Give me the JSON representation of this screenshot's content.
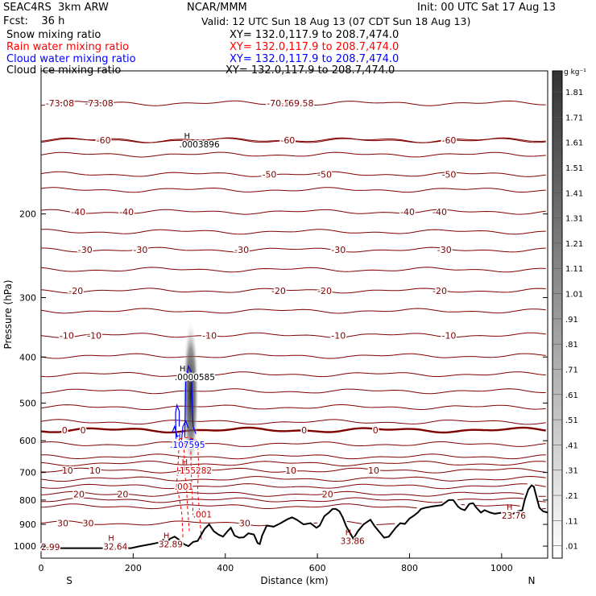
{
  "header": {
    "model": "SEAC4RS  3km ARW",
    "org": "NCAR/MMM",
    "init": "Init: 00 UTC Sat 17 Aug 13",
    "fcst": "Fcst:    36 h",
    "valid": "Valid: 12 UTC Sun 18 Aug 13 (07 CDT Sun 18 Aug 13)"
  },
  "fields": [
    {
      "name": "Snow mixing ratio",
      "xy": "XY= 132.0,117.9 to 208.7,474.0",
      "color": "#000000"
    },
    {
      "name": "Rain water mixing ratio",
      "xy": "XY= 132.0,117.9 to 208.7,474.0",
      "color": "#ff0000"
    },
    {
      "name": "Cloud water mixing ratio",
      "xy": "XY= 132.0,117.9 to 208.7,474.0",
      "color": "#0000ff"
    },
    {
      "name": "Cloud ice mixing ratio",
      "xy": "XY= 132.0,117.9 to 208.7,474.0",
      "color": "#000000"
    }
  ],
  "colorbar": {
    "unit": "g kg⁻¹",
    "labels": [
      "1.81",
      "1.71",
      "1.61",
      "1.51",
      "1.41",
      "1.31",
      "1.21",
      "1.11",
      "1.01",
      ".91",
      ".81",
      ".71",
      ".61",
      ".51",
      ".41",
      ".31",
      ".21",
      ".11",
      ".01"
    ]
  },
  "chart_data": {
    "type": "cross-section",
    "xlabel": "Distance (km)",
    "ylabel": "Pressure (hPa)",
    "xlim": [
      0,
      1100
    ],
    "ylim": [
      1060,
      100
    ],
    "y_log": true,
    "x_ticks": [
      0,
      200,
      400,
      600,
      800,
      1000
    ],
    "y_ticks": [
      200,
      300,
      400,
      500,
      600,
      700,
      800,
      900,
      1000
    ],
    "endpoint_labels": {
      "left": "S",
      "right": "N"
    },
    "temperature_color": "#800000",
    "terrain": [
      [
        0,
        1010
      ],
      [
        110,
        1010
      ],
      [
        195,
        1010
      ],
      [
        215,
        1000
      ],
      [
        240,
        990
      ],
      [
        255,
        983
      ],
      [
        265,
        970
      ],
      [
        272,
        985
      ],
      [
        280,
        965
      ],
      [
        290,
        955
      ],
      [
        300,
        970
      ],
      [
        310,
        990
      ],
      [
        320,
        1000
      ],
      [
        330,
        980
      ],
      [
        340,
        975
      ],
      [
        355,
        920
      ],
      [
        365,
        900
      ],
      [
        375,
        930
      ],
      [
        385,
        945
      ],
      [
        395,
        955
      ],
      [
        405,
        930
      ],
      [
        412,
        915
      ],
      [
        420,
        950
      ],
      [
        430,
        960
      ],
      [
        440,
        958
      ],
      [
        450,
        940
      ],
      [
        462,
        945
      ],
      [
        470,
        985
      ],
      [
        475,
        990
      ],
      [
        480,
        950
      ],
      [
        490,
        905
      ],
      [
        505,
        910
      ],
      [
        520,
        895
      ],
      [
        535,
        878
      ],
      [
        545,
        870
      ],
      [
        555,
        880
      ],
      [
        570,
        900
      ],
      [
        585,
        895
      ],
      [
        598,
        915
      ],
      [
        605,
        905
      ],
      [
        615,
        865
      ],
      [
        625,
        850
      ],
      [
        633,
        835
      ],
      [
        640,
        835
      ],
      [
        648,
        845
      ],
      [
        655,
        870
      ],
      [
        663,
        910
      ],
      [
        670,
        935
      ],
      [
        678,
        965
      ],
      [
        688,
        930
      ],
      [
        700,
        900
      ],
      [
        715,
        880
      ],
      [
        725,
        910
      ],
      [
        735,
        935
      ],
      [
        745,
        960
      ],
      [
        755,
        955
      ],
      [
        770,
        915
      ],
      [
        780,
        895
      ],
      [
        790,
        898
      ],
      [
        800,
        875
      ],
      [
        810,
        862
      ],
      [
        818,
        850
      ],
      [
        825,
        835
      ],
      [
        835,
        830
      ],
      [
        850,
        825
      ],
      [
        870,
        820
      ],
      [
        885,
        800
      ],
      [
        895,
        800
      ],
      [
        905,
        825
      ],
      [
        912,
        835
      ],
      [
        920,
        840
      ],
      [
        930,
        815
      ],
      [
        938,
        812
      ],
      [
        945,
        830
      ],
      [
        955,
        850
      ],
      [
        963,
        840
      ],
      [
        975,
        850
      ],
      [
        985,
        855
      ],
      [
        995,
        852
      ],
      [
        1005,
        850
      ],
      [
        1015,
        855
      ],
      [
        1025,
        855
      ],
      [
        1035,
        845
      ],
      [
        1045,
        840
      ],
      [
        1050,
        800
      ],
      [
        1058,
        760
      ],
      [
        1065,
        745
      ],
      [
        1070,
        750
      ],
      [
        1076,
        790
      ],
      [
        1082,
        830
      ],
      [
        1090,
        845
      ],
      [
        1100,
        850
      ]
    ],
    "isotherms": [
      {
        "level": -70,
        "p": 117,
        "labels": [
          [
            10,
            "-73.08"
          ],
          [
            95,
            "-73.08"
          ],
          [
            490,
            "-70.53"
          ],
          [
            530,
            "-69.58"
          ]
        ]
      },
      {
        "level": -60,
        "p": 140,
        "labels": [
          [
            120,
            "-60"
          ],
          [
            520,
            "-60"
          ],
          [
            870,
            "-60"
          ]
        ]
      },
      {
        "level": -50,
        "p": 165,
        "labels": [
          [
            480,
            "-50"
          ],
          [
            600,
            "-50"
          ],
          [
            870,
            "-50"
          ]
        ]
      },
      {
        "level": -40,
        "p": 198,
        "labels": [
          [
            65,
            "-40"
          ],
          [
            170,
            "-40"
          ],
          [
            780,
            "-40"
          ],
          [
            850,
            "-40"
          ]
        ]
      },
      {
        "level": -30,
        "p": 238,
        "labels": [
          [
            80,
            "-30"
          ],
          [
            200,
            "-30"
          ],
          [
            420,
            "-30"
          ],
          [
            630,
            "-30"
          ],
          [
            860,
            "-30"
          ]
        ]
      },
      {
        "level": -20,
        "p": 290,
        "labels": [
          [
            60,
            "-20"
          ],
          [
            500,
            "-20"
          ],
          [
            600,
            "-20"
          ],
          [
            850,
            "-20"
          ]
        ]
      },
      {
        "level": -10,
        "p": 360,
        "labels": [
          [
            40,
            "-10"
          ],
          [
            100,
            "-10"
          ],
          [
            350,
            "-10"
          ],
          [
            630,
            "-10"
          ],
          [
            870,
            "-10"
          ]
        ]
      },
      {
        "level": 0,
        "p": 570,
        "labels": [
          [
            45,
            "0"
          ],
          [
            85,
            "0"
          ],
          [
            565,
            "0"
          ],
          [
            720,
            "0"
          ]
        ],
        "bold": true
      },
      {
        "level": 10,
        "p": 693,
        "labels": [
          [
            45,
            "10"
          ],
          [
            105,
            "10"
          ],
          [
            530,
            "10"
          ],
          [
            710,
            "10"
          ]
        ]
      },
      {
        "level": 20,
        "p": 777,
        "labels": [
          [
            70,
            "20"
          ],
          [
            165,
            "20"
          ],
          [
            610,
            "20"
          ]
        ]
      },
      {
        "level": 30,
        "p": 895,
        "labels": [
          [
            35,
            "30"
          ],
          [
            90,
            "30"
          ],
          [
            430,
            "30"
          ]
        ]
      }
    ],
    "extra_isotherm_levels_hPa": [
      140,
      150,
      178,
      218,
      262,
      320,
      398,
      435,
      472,
      510,
      548,
      610,
      648,
      670,
      722,
      748,
      800,
      825
    ],
    "annotations": [
      {
        "x": 300,
        "p": 140,
        "marker": "H",
        "value": ".0003896",
        "color": "#000000"
      },
      {
        "x": 290,
        "p": 432,
        "marker": "H",
        "value": ".0000585",
        "color": "#000000"
      },
      {
        "x": 280,
        "p": 600,
        "marker": "H",
        "value": ".107595",
        "color": "#0000ff"
      },
      {
        "x": 295,
        "p": 680,
        "marker": "H",
        "value": ".155282",
        "color": "#cc0000"
      },
      {
        "x": 290,
        "p": 735,
        "marker": "",
        "value": ".001",
        "color": "#cc0000"
      },
      {
        "x": 330,
        "p": 840,
        "marker": "",
        "value": ".001",
        "color": "#cc0000"
      },
      {
        "x": 0,
        "p": 985,
        "marker": "",
        "value": "2.99",
        "color": "#800000"
      },
      {
        "x": 135,
        "p": 982,
        "marker": "H",
        "value": "32.64",
        "color": "#800000"
      },
      {
        "x": 255,
        "p": 970,
        "marker": "H",
        "value": "32.89",
        "color": "#800000"
      },
      {
        "x": 650,
        "p": 955,
        "marker": "H",
        "value": "33.86",
        "color": "#800000"
      },
      {
        "x": 1000,
        "p": 845,
        "marker": "H",
        "value": "23.76",
        "color": "#800000"
      }
    ]
  }
}
